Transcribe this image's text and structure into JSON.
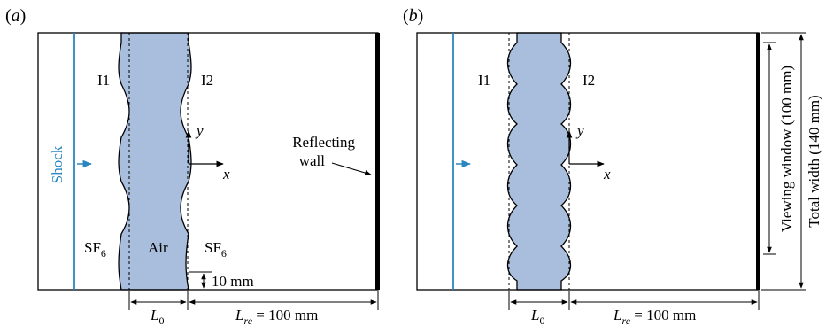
{
  "colors": {
    "air": "#a9bedd",
    "shock": "#2a86bf",
    "line": "#000000"
  },
  "panel_a": {
    "label": "(a)",
    "interface_left": "I1",
    "interface_right": "I2",
    "shock_label": "Shock",
    "gas_left": "SF",
    "gas_left_sub": "6",
    "gas_middle": "Air",
    "gas_right": "SF",
    "gas_right_sub": "6",
    "wall_label_line1": "Reflecting",
    "wall_label_line2": "wall",
    "axis_y": "y",
    "axis_x": "x",
    "amplitude_label": "10 mm",
    "l0_main": "L",
    "l0_sub": "0",
    "lre_main": "L",
    "lre_sub": "re",
    "lre_value": " = 100 mm"
  },
  "panel_b": {
    "label": "(b)",
    "interface_left": "I1",
    "interface_right": "I2",
    "axis_y": "y",
    "axis_x": "x",
    "l0_main": "L",
    "l0_sub": "0",
    "lre_main": "L",
    "lre_sub": "re",
    "lre_value": " = 100 mm",
    "viewing_window": "Viewing window (100 mm)",
    "total_width": "Total width (140 mm)"
  }
}
